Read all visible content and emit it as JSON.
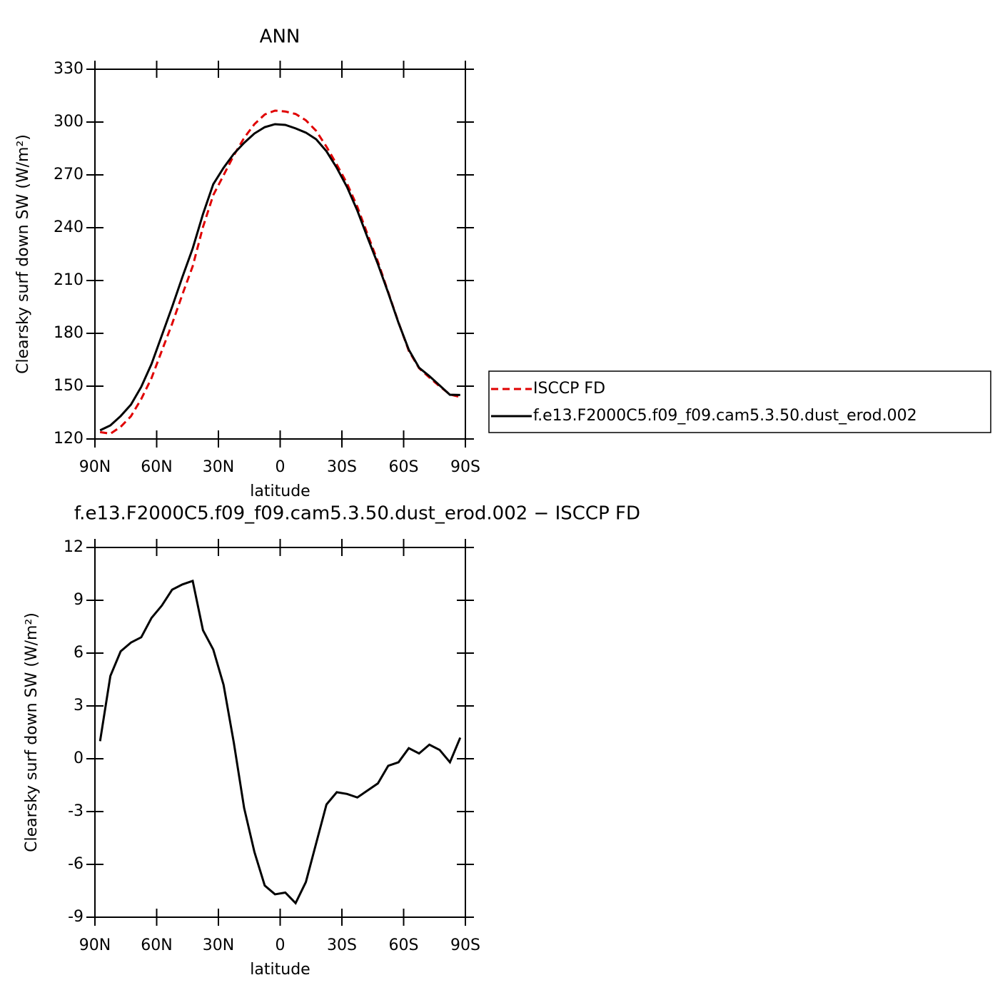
{
  "chart_data": [
    {
      "type": "line",
      "title": "ANN",
      "xlabel": "latitude",
      "ylabel": "Clearsky surf down SW (W/m²)",
      "x": [
        87.5,
        82.5,
        77.5,
        72.5,
        67.5,
        62.5,
        57.5,
        52.5,
        47.5,
        42.5,
        37.5,
        32.5,
        27.5,
        22.5,
        17.5,
        12.5,
        7.5,
        2.5,
        -2.5,
        -7.5,
        -12.5,
        -17.5,
        -22.5,
        -27.5,
        -32.5,
        -37.5,
        -42.5,
        -47.5,
        -52.5,
        -57.5,
        -62.5,
        -67.5,
        -72.5,
        -77.5,
        -82.5,
        -87.5
      ],
      "series": [
        {
          "name": "ISCCP FD",
          "color": "#e00000",
          "style": "dashed",
          "values": [
            123.9,
            123.0,
            126.9,
            132.9,
            142.7,
            154.6,
            170.1,
            185.4,
            202.1,
            218.1,
            240.4,
            258.5,
            269.8,
            281.1,
            291.0,
            298.8,
            304.3,
            306.5,
            306.0,
            304.6,
            301.0,
            295.0,
            286.0,
            275.9,
            265.1,
            251.9,
            236.1,
            220.7,
            203.4,
            186.2,
            170.1,
            160.2,
            154.9,
            149.9,
            145.3,
            143.8
          ]
        },
        {
          "name": "f.e13.F2000C5.f09_f09.cam5.3.50.dust_erod.002",
          "color": "#000000",
          "style": "solid",
          "values": [
            124.9,
            127.7,
            133.0,
            139.5,
            149.6,
            162.6,
            178.8,
            195.0,
            212.0,
            228.2,
            247.7,
            264.7,
            274.0,
            282.0,
            288.2,
            293.5,
            297.1,
            298.8,
            298.4,
            296.4,
            294.0,
            290.2,
            283.4,
            274.0,
            263.1,
            249.7,
            234.3,
            219.3,
            203.0,
            186.0,
            170.7,
            160.5,
            155.7,
            150.4,
            145.1,
            145.0
          ]
        }
      ],
      "xlim": [
        90,
        -90
      ],
      "xticks": [
        {
          "value": 90,
          "label": "90N"
        },
        {
          "value": 60,
          "label": "60N"
        },
        {
          "value": 30,
          "label": "30N"
        },
        0,
        {
          "value": -30,
          "label": "30S"
        },
        {
          "value": -60,
          "label": "60S"
        },
        {
          "value": -90,
          "label": "90S"
        }
      ],
      "ylim": [
        120,
        330
      ],
      "yticks": [
        120,
        150,
        180,
        210,
        240,
        270,
        300,
        330
      ],
      "legend": "outside-right"
    },
    {
      "type": "line",
      "title": "f.e13.F2000C5.f09_f09.cam5.3.50.dust_erod.002 − ISCCP FD",
      "xlabel": "latitude",
      "ylabel": "Clearsky surf down SW (W/m²)",
      "x": [
        87.5,
        82.5,
        77.5,
        72.5,
        67.5,
        62.5,
        57.5,
        52.5,
        47.5,
        42.5,
        37.5,
        32.5,
        27.5,
        22.5,
        17.5,
        12.5,
        7.5,
        2.5,
        -2.5,
        -7.5,
        -12.5,
        -17.5,
        -22.5,
        -27.5,
        -32.5,
        -37.5,
        -42.5,
        -47.5,
        -52.5,
        -57.5,
        -62.5,
        -67.5,
        -72.5,
        -77.5,
        -82.5,
        -87.5
      ],
      "series": [
        {
          "color": "#000000",
          "style": "solid",
          "values": [
            1.0,
            4.7,
            6.1,
            6.6,
            6.9,
            8.0,
            8.7,
            9.6,
            9.9,
            10.1,
            7.3,
            6.2,
            4.2,
            0.9,
            -2.8,
            -5.3,
            -7.2,
            -7.7,
            -7.6,
            -8.2,
            -7.0,
            -4.8,
            -2.6,
            -1.9,
            -2.0,
            -2.2,
            -1.8,
            -1.4,
            -0.4,
            -0.2,
            0.6,
            0.3,
            0.8,
            0.5,
            -0.2,
            1.2
          ]
        }
      ],
      "xlim": [
        90,
        -90
      ],
      "xticks": [
        {
          "value": 90,
          "label": "90N"
        },
        {
          "value": 60,
          "label": "60N"
        },
        {
          "value": 30,
          "label": "30N"
        },
        0,
        {
          "value": -30,
          "label": "30S"
        },
        {
          "value": -60,
          "label": "60S"
        },
        {
          "value": -90,
          "label": "90S"
        }
      ],
      "ylim": [
        -9,
        12
      ],
      "yticks": [
        -9,
        -6,
        -3,
        0,
        3,
        6,
        9,
        12
      ]
    }
  ]
}
